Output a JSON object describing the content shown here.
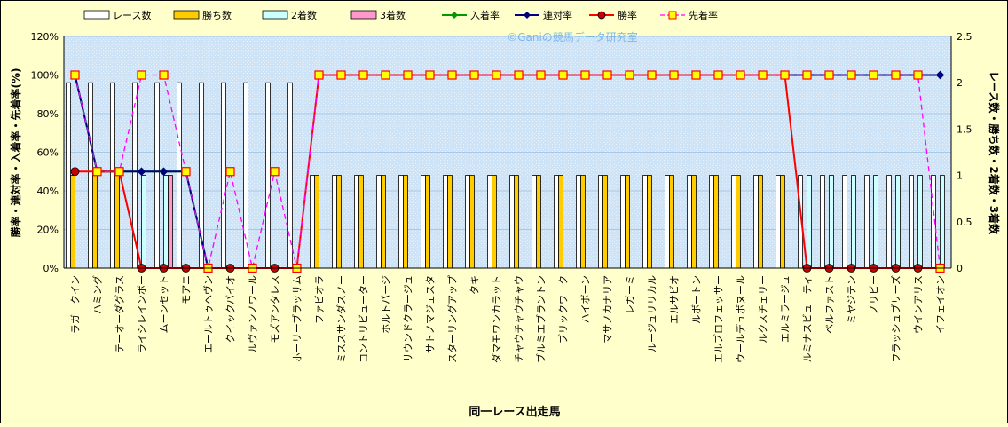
{
  "chart_data": {
    "type": "bar",
    "watermark": "©Ganiの競馬データ研究室",
    "xlabel": "同一レース出走馬",
    "ylabel_left": "勝率・連対率・入着率・先着率(%)",
    "ylabel_right": "レース数・勝ち数・2着数・3着数",
    "y_left_ticks": [
      "0%",
      "20%",
      "40%",
      "60%",
      "80%",
      "100%",
      "120%"
    ],
    "y_right_ticks": [
      "0",
      "0.5",
      "1",
      "1.5",
      "2",
      "2.5"
    ],
    "ylim_left": [
      0,
      120
    ],
    "ylim_right": [
      0,
      2.5
    ],
    "grid": true,
    "legend_position": "top",
    "categories": [
      "ラガークイン",
      "ハミング",
      "テーオーダグラス",
      "ライシレインボー",
      "ムーンセット",
      "モアニ",
      "エールトゥヘヴン",
      "クイックバイオ",
      "ルヴァンノワール",
      "モズアンタレス",
      "ホーリーブラッサム",
      "ファビオラ",
      "ミススサンダスノー",
      "コントリビューター",
      "ホルトバージ",
      "サウンドクラージュ",
      "サトノマジェスタ",
      "スターリングアップ",
      "タキ",
      "ダマモワンカラット",
      "チャウチャウチャウ",
      "ブルミエブラントン",
      "ブリックワーク",
      "ハイボーン",
      "マサノカナリア",
      "レガーミ",
      "ルージュリリカル",
      "エルサビオ",
      "ルボートン",
      "エルブロフェッサー",
      "ウールデュボヌール",
      "ルクスチェリー",
      "エルミラージュ",
      "ルミナスビューティ",
      "ベルファスト",
      "ミヤジテン",
      "ノリビー",
      "フラッシュブリーズ",
      "ウインアリス",
      "イフェイオン"
    ],
    "series": [
      {
        "name": "レース数",
        "axis": "right",
        "kind": "bar",
        "color": "#ffffff",
        "values": [
          2,
          2,
          2,
          2,
          2,
          2,
          2,
          2,
          2,
          2,
          2,
          1,
          1,
          1,
          1,
          1,
          1,
          1,
          1,
          1,
          1,
          1,
          1,
          1,
          1,
          1,
          1,
          1,
          1,
          1,
          1,
          1,
          1,
          1,
          1,
          1,
          1,
          1,
          1,
          1
        ]
      },
      {
        "name": "勝ち数",
        "axis": "right",
        "kind": "bar",
        "color": "#ffcc00",
        "values": [
          1,
          1,
          1,
          0,
          0,
          0,
          0,
          0,
          0,
          0,
          0,
          1,
          1,
          1,
          1,
          1,
          1,
          1,
          1,
          1,
          1,
          1,
          1,
          1,
          1,
          1,
          1,
          1,
          1,
          1,
          1,
          1,
          1,
          0,
          0,
          0,
          0,
          0,
          0,
          0
        ]
      },
      {
        "name": "2着数",
        "axis": "right",
        "kind": "bar",
        "color": "#ccffff",
        "values": [
          0,
          0,
          0,
          1,
          1,
          0,
          0,
          0,
          0,
          0,
          0,
          0,
          0,
          0,
          0,
          0,
          0,
          0,
          0,
          0,
          0,
          0,
          0,
          0,
          0,
          0,
          0,
          0,
          0,
          0,
          0,
          0,
          0,
          1,
          1,
          1,
          1,
          1,
          1,
          1
        ]
      },
      {
        "name": "3着数",
        "axis": "right",
        "kind": "bar",
        "color": "#ff99cc",
        "values": [
          0,
          0,
          0,
          0,
          1,
          0,
          0,
          0,
          0,
          0,
          0,
          0,
          0,
          0,
          0,
          0,
          0,
          0,
          0,
          0,
          0,
          0,
          0,
          0,
          0,
          0,
          0,
          0,
          0,
          0,
          0,
          0,
          0,
          0,
          0,
          0,
          0,
          0,
          0,
          0
        ]
      },
      {
        "name": "入着率",
        "axis": "left",
        "kind": "line",
        "color": "#009900",
        "marker": "diamond",
        "values": [
          100,
          50,
          50,
          50,
          50,
          50,
          0,
          null,
          null,
          null,
          null,
          100,
          100,
          100,
          100,
          100,
          100,
          100,
          100,
          100,
          100,
          100,
          100,
          100,
          100,
          100,
          100,
          100,
          100,
          100,
          100,
          100,
          100,
          100,
          100,
          100,
          100,
          100,
          100,
          100
        ]
      },
      {
        "name": "連対率",
        "axis": "left",
        "kind": "line",
        "color": "#000080",
        "marker": "diamond",
        "values": [
          100,
          50,
          50,
          50,
          50,
          50,
          0,
          null,
          null,
          null,
          null,
          100,
          100,
          100,
          100,
          100,
          100,
          100,
          100,
          100,
          100,
          100,
          100,
          100,
          100,
          100,
          100,
          100,
          100,
          100,
          100,
          100,
          100,
          100,
          100,
          100,
          100,
          100,
          100,
          100
        ]
      },
      {
        "name": "勝率",
        "axis": "left",
        "kind": "line",
        "color": "#ff0000",
        "marker": "circle",
        "values": [
          50,
          50,
          50,
          0,
          0,
          0,
          0,
          0,
          0,
          0,
          0,
          100,
          100,
          100,
          100,
          100,
          100,
          100,
          100,
          100,
          100,
          100,
          100,
          100,
          100,
          100,
          100,
          100,
          100,
          100,
          100,
          100,
          100,
          0,
          0,
          0,
          0,
          0,
          0,
          0
        ]
      },
      {
        "name": "先着率",
        "axis": "left",
        "kind": "line",
        "color": "#ff00ff",
        "marker": "square",
        "dashed": true,
        "values": [
          100,
          50,
          50,
          100,
          100,
          50,
          0,
          50,
          0,
          50,
          0,
          100,
          100,
          100,
          100,
          100,
          100,
          100,
          100,
          100,
          100,
          100,
          100,
          100,
          100,
          100,
          100,
          100,
          100,
          100,
          100,
          100,
          100,
          100,
          100,
          100,
          100,
          100,
          100,
          0
        ]
      }
    ]
  }
}
